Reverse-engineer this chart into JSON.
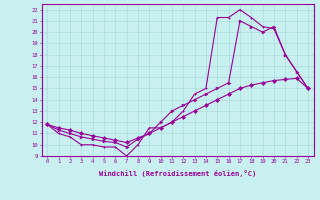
{
  "xlabel": "Windchill (Refroidissement éolien,°C)",
  "bg_color": "#c8f0f0",
  "line_color": "#990099",
  "grid_color": "#aadddd",
  "xlim": [
    -0.5,
    23.5
  ],
  "ylim": [
    9,
    22.5
  ],
  "xticks": [
    0,
    1,
    2,
    3,
    4,
    5,
    6,
    7,
    8,
    9,
    10,
    11,
    12,
    13,
    14,
    15,
    16,
    17,
    18,
    19,
    20,
    21,
    22,
    23
  ],
  "yticks": [
    9,
    10,
    11,
    12,
    13,
    14,
    15,
    16,
    17,
    18,
    19,
    20,
    21,
    22
  ],
  "series1_x": [
    0,
    1,
    2,
    3,
    4,
    5,
    6,
    7,
    8,
    9,
    10,
    11,
    12,
    13,
    14,
    15,
    16,
    17,
    18,
    19,
    20,
    21,
    22,
    23
  ],
  "series1_y": [
    11.8,
    11.0,
    10.7,
    10.0,
    10.0,
    9.8,
    9.8,
    9.0,
    10.0,
    11.5,
    11.5,
    12.0,
    13.0,
    14.5,
    15.0,
    21.3,
    21.3,
    22.0,
    21.3,
    20.5,
    20.3,
    18.0,
    16.5,
    15.0
  ],
  "series2_x": [
    0,
    1,
    2,
    3,
    4,
    5,
    6,
    7,
    8,
    9,
    10,
    11,
    12,
    13,
    14,
    15,
    16,
    17,
    18,
    19,
    20,
    21,
    22,
    23
  ],
  "series2_y": [
    11.8,
    11.3,
    11.0,
    10.7,
    10.5,
    10.3,
    10.2,
    9.8,
    10.5,
    11.0,
    12.0,
    13.0,
    13.5,
    14.0,
    14.5,
    15.0,
    15.5,
    21.0,
    20.5,
    20.0,
    20.5,
    18.0,
    16.5,
    15.0
  ],
  "series3_x": [
    0,
    1,
    2,
    3,
    4,
    5,
    6,
    7,
    8,
    9,
    10,
    11,
    12,
    13,
    14,
    15,
    16,
    17,
    18,
    19,
    20,
    21,
    22,
    23
  ],
  "series3_y": [
    11.8,
    11.5,
    11.3,
    11.0,
    10.8,
    10.6,
    10.4,
    10.2,
    10.6,
    11.0,
    11.5,
    12.0,
    12.5,
    13.0,
    13.5,
    14.0,
    14.5,
    15.0,
    15.3,
    15.5,
    15.7,
    15.8,
    15.9,
    15.0
  ]
}
